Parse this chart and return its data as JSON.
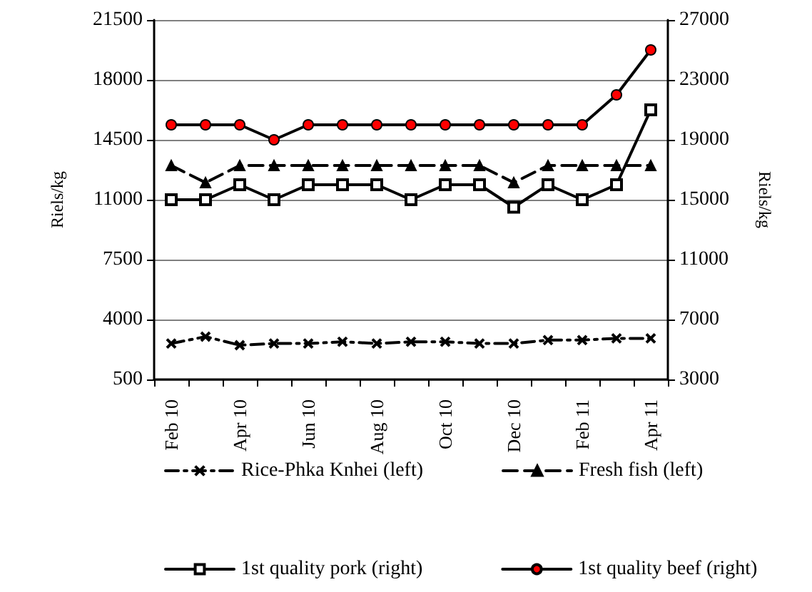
{
  "chart_data": {
    "type": "line",
    "ylabel": "Riels/kg",
    "y2label": "Riels/kg",
    "categories": [
      "Feb 10",
      null,
      "Apr 10",
      null,
      "Jun 10",
      null,
      "Aug 10",
      null,
      "Oct 10",
      null,
      "Dec 10",
      null,
      "Feb 11",
      null,
      "Apr 11"
    ],
    "series": [
      {
        "name": "Rice-Phka Knhei (left)",
        "color": "#000000",
        "marker": "cross",
        "line_style": "dotted",
        "values": [
          2600,
          3000,
          2500,
          2600,
          2600,
          2700,
          2600,
          2700,
          2700,
          2600,
          2600,
          2800,
          2800,
          2900,
          2900
        ]
      },
      {
        "name": "Fresh fish (left)",
        "color": "#000000",
        "marker": "triangle",
        "line_style": "dashed",
        "values": [
          13000,
          12000,
          13000,
          13000,
          13000,
          13000,
          13000,
          13000,
          13000,
          13000,
          12000,
          13000,
          13000,
          13000,
          13000
        ]
      },
      {
        "name": "1st quality pork (right)",
        "color": "#000000",
        "marker": "square",
        "line_style": "solid",
        "axis": "y2",
        "values": [
          15000,
          15000,
          16000,
          15000,
          16000,
          16000,
          16000,
          15000,
          16000,
          16000,
          14500,
          16000,
          15000,
          16000,
          21000
        ]
      },
      {
        "name": "1st quality beef (right)",
        "color": "#ff0000",
        "marker": "circle",
        "line_style": "solid",
        "axis": "y2",
        "values": [
          20000,
          20000,
          20000,
          19000,
          20000,
          20000,
          20000,
          20000,
          20000,
          20000,
          20000,
          20000,
          20000,
          22000,
          25000
        ]
      }
    ],
    "ylim": [
      500,
      21500
    ],
    "yticks": [
      500,
      4000,
      7500,
      11000,
      14500,
      18000,
      21500
    ],
    "y2lim": [
      3000,
      27000
    ],
    "y2ticks": [
      3000,
      7000,
      11000,
      15000,
      19000,
      23000,
      27000
    ],
    "grid": "y",
    "legend": "bottom"
  }
}
